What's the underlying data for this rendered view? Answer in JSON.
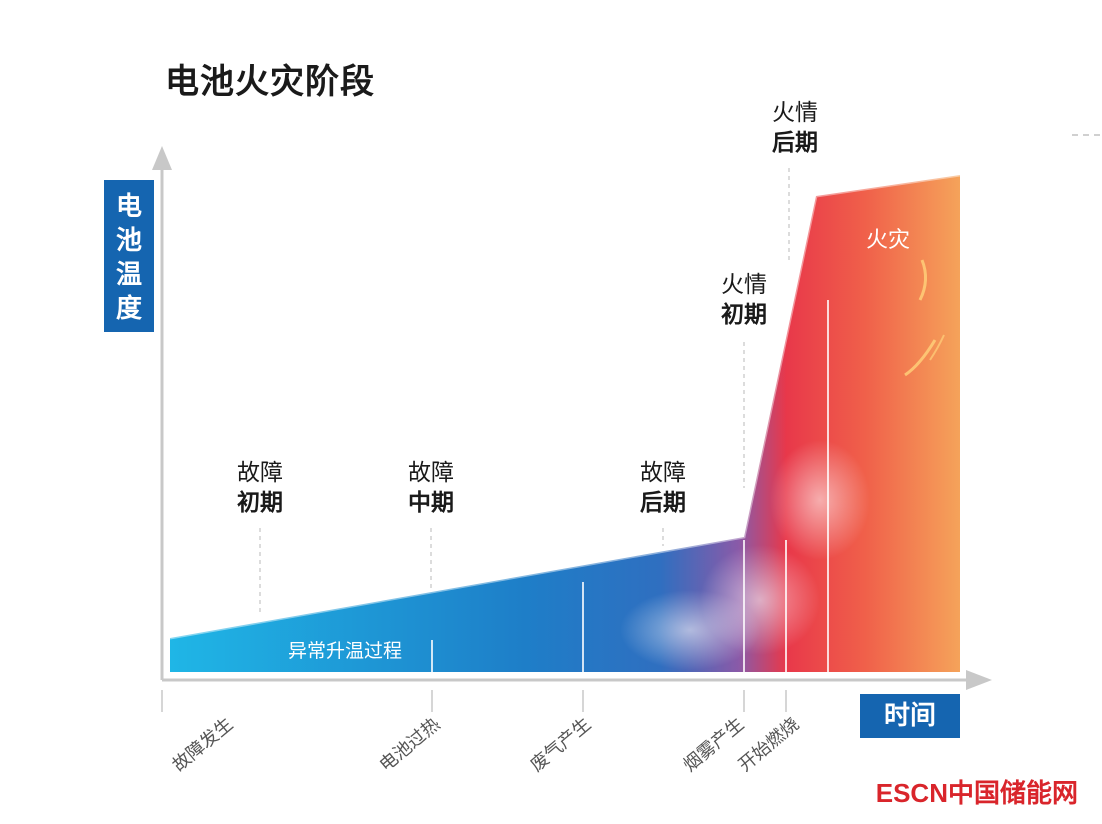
{
  "title": "电池火灾阶段",
  "y_axis": {
    "chars": [
      "电",
      "池",
      "温",
      "度"
    ]
  },
  "x_axis": {
    "label": "时间"
  },
  "stages": [
    {
      "line1": "故障",
      "line2": "初期"
    },
    {
      "line1": "故障",
      "line2": "中期"
    },
    {
      "line1": "故障",
      "line2": "后期"
    },
    {
      "line1": "火情",
      "line2": "初期"
    },
    {
      "line1": "火情",
      "line2": "后期"
    }
  ],
  "area_label": "异常升温过程",
  "fire_label": "火灾",
  "events": [
    "故障发生",
    "电池过热",
    "废气产生",
    "烟雾产生",
    "开始燃烧"
  ],
  "logo": {
    "prefix": "ESCN",
    "name": "中国储能网"
  },
  "colors": {
    "blue": "#1565b0",
    "cyan": "#1fb6e6",
    "red": "#e8384a",
    "orange": "#f5a35a",
    "axis": "#c8c8c8",
    "logo": "#d9252b"
  },
  "chart_data": {
    "type": "area",
    "title": "电池火灾阶段",
    "xlabel": "时间",
    "ylabel": "电池温度",
    "x_events": [
      "故障发生",
      "电池过热",
      "废气产生",
      "烟雾产生",
      "开始燃烧"
    ],
    "stages": [
      "故障初期",
      "故障中期",
      "故障后期",
      "火情初期",
      "火情后期"
    ],
    "curve_description": [
      "slow linear rise",
      "sharp rise after 烟雾产生",
      "plateau after 开始燃烧"
    ],
    "grid": false,
    "legend": "none"
  }
}
